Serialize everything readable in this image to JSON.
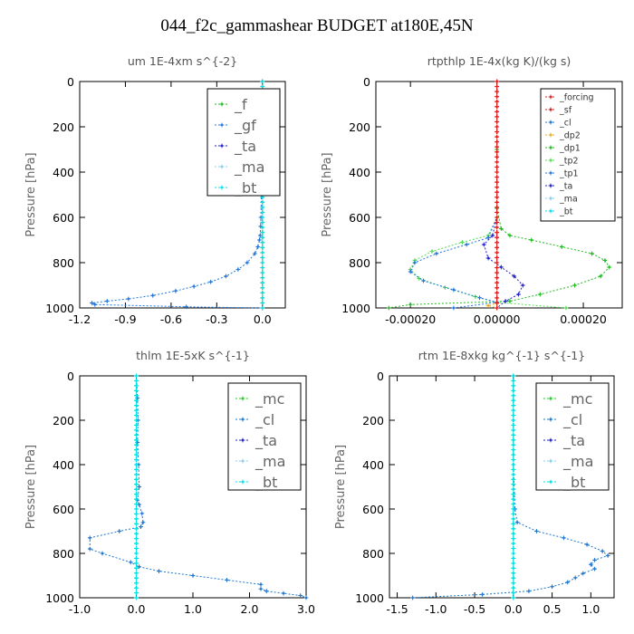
{
  "figure_title": "044_f2c_gammashear  BUDGET at180E,45N",
  "colors": {
    "f": "#22bb22",
    "gf": "#2277dd",
    "ta": "#2222cc",
    "ma": "#88ccee",
    "bt": "#00e0ee",
    "forcing": "#dd2222",
    "sf": "#cc2222",
    "cl": "#1f77d0",
    "dp2": "#e8b020",
    "dp1": "#22bb22",
    "tp2": "#55dd55",
    "tp1": "#2277dd",
    "mc": "#22cc22"
  },
  "chart_data": [
    {
      "type": "line",
      "title": "um   1E-4xm  s^{-2}",
      "ylabel": "Pressure [hPa]",
      "xlim": [
        -1.2,
        0.15
      ],
      "ylim": [
        1000,
        0
      ],
      "xticks": [
        -1.2,
        -0.9,
        -0.6,
        -0.3,
        0.0
      ],
      "xtick_labels": [
        "-1.2",
        "-0.9",
        "-0.6",
        "-0.3",
        "0.0"
      ],
      "yticks": [
        0,
        200,
        400,
        600,
        800,
        1000
      ],
      "ytick_labels": [
        "0",
        "200",
        "400",
        "600",
        "800",
        "1000"
      ],
      "legend": {
        "location": "top-right",
        "labels": [
          "_f",
          "_gf",
          "_ta",
          "_ma",
          "_bt"
        ],
        "style": "large"
      },
      "series": [
        {
          "name": "_gf",
          "color_key": "gf",
          "x": [
            -0.002,
            -0.003,
            -0.004,
            -0.005,
            -0.006,
            -0.007,
            -0.01,
            -0.012,
            -0.015,
            -0.02,
            -0.03,
            -0.05,
            -0.1,
            -0.16,
            -0.24,
            -0.34,
            -0.45,
            -0.57,
            -0.72,
            -0.88,
            -1.02,
            -1.12,
            -1.1,
            -0.5,
            0.0
          ],
          "y": [
            0,
            100,
            200,
            300,
            400,
            500,
            600,
            640,
            680,
            700,
            730,
            760,
            800,
            830,
            860,
            885,
            905,
            925,
            945,
            960,
            970,
            978,
            985,
            995,
            1000
          ]
        },
        {
          "name": "_f",
          "color_key": "f",
          "x": [
            0,
            0
          ],
          "y": [
            0,
            1000
          ]
        },
        {
          "name": "_bt",
          "color_key": "bt",
          "x": [
            0,
            0
          ],
          "y": [
            0,
            1000
          ]
        }
      ]
    },
    {
      "type": "line",
      "title": "rtpthlp   1E-4x(kg K)/(kg s)",
      "ylabel": "Pressure [hPa]",
      "xlim": [
        -0.00028,
        0.00029
      ],
      "ylim": [
        1000,
        0
      ],
      "xticks": [
        -0.0002,
        0.0,
        0.0002
      ],
      "xtick_labels": [
        "-0.00020",
        "0.00000",
        "0.00020"
      ],
      "yticks": [
        0,
        200,
        400,
        600,
        800,
        1000
      ],
      "ytick_labels": [
        "0",
        "200",
        "400",
        "600",
        "800",
        "1000"
      ],
      "legend": {
        "location": "top-right",
        "labels": [
          "_forcing",
          "_sf",
          "_cl",
          "_dp2",
          "_dp1",
          "_tp2",
          "_tp1",
          "_ta",
          "_ma",
          "_bt"
        ],
        "style": "small"
      },
      "series": [
        {
          "name": "_dp1",
          "color_key": "dp1",
          "x": [
            0,
            0,
            0,
            1e-05,
            3e-05,
            8e-05,
            0.00015,
            0.00022,
            0.00025,
            0.00026,
            0.00024,
            0.00018,
            0.0001,
            3e-05,
            -0.0002,
            -0.00025
          ],
          "y": [
            0,
            300,
            560,
            650,
            680,
            700,
            730,
            760,
            790,
            820,
            860,
            900,
            940,
            970,
            985,
            1000
          ]
        },
        {
          "name": "_tp2",
          "color_key": "tp2",
          "x": [
            0,
            0,
            -2e-05,
            -8e-05,
            -0.00015,
            -0.00019,
            -0.0002,
            -0.00018,
            -0.00012,
            -5e-05,
            0,
            0.00016
          ],
          "y": [
            0,
            600,
            680,
            710,
            750,
            790,
            830,
            870,
            910,
            950,
            975,
            1000
          ]
        },
        {
          "name": "_tp1",
          "color_key": "tp1",
          "x": [
            0,
            0,
            -2e-05,
            -7e-05,
            -0.00014,
            -0.00019,
            -0.0002,
            -0.00017,
            -0.0001,
            -4e-05,
            0,
            -0.0001
          ],
          "y": [
            0,
            600,
            690,
            720,
            760,
            800,
            840,
            880,
            920,
            955,
            975,
            1000
          ]
        },
        {
          "name": "_ta",
          "color_key": "ta",
          "x": [
            0,
            0,
            -1e-05,
            -3e-05,
            -2e-05,
            1e-05,
            4e-05,
            6e-05,
            5e-05,
            2e-05,
            0
          ],
          "y": [
            0,
            600,
            680,
            720,
            780,
            820,
            860,
            900,
            940,
            970,
            1000
          ]
        },
        {
          "name": "_dp2",
          "color_key": "dp2",
          "x": [
            0,
            0,
            -2e-05,
            0
          ],
          "y": [
            0,
            980,
            990,
            1000
          ]
        },
        {
          "name": "_sf",
          "color_key": "sf",
          "x": [
            0,
            0
          ],
          "y": [
            0,
            1000
          ]
        },
        {
          "name": "_forcing",
          "color_key": "forcing",
          "x": [
            0,
            0
          ],
          "y": [
            0,
            1000
          ]
        }
      ]
    },
    {
      "type": "line",
      "title": "thlm   1E-5xK  s^{-1}",
      "ylabel": "Pressure [hPa]",
      "xlim": [
        -1.0,
        3.0
      ],
      "ylim": [
        1000,
        0
      ],
      "xticks": [
        -1.0,
        0.0,
        1.0,
        2.0,
        3.0
      ],
      "xtick_labels": [
        "-1.0",
        "0.0",
        "1.0",
        "2.0",
        "3.0"
      ],
      "yticks": [
        0,
        200,
        400,
        600,
        800,
        1000
      ],
      "ytick_labels": [
        "0",
        "200",
        "400",
        "600",
        "800",
        "1000"
      ],
      "legend": {
        "location": "top-right",
        "labels": [
          "_mc",
          "_cl",
          "_ta",
          "_ma",
          "_bt"
        ],
        "style": "large"
      },
      "series": [
        {
          "name": "_cl",
          "color_key": "cl",
          "x": [
            0,
            0.02,
            0.03,
            0.02,
            0.04,
            0.05,
            0.02,
            0.05,
            0.1,
            0.12,
            0.08,
            -0.3,
            -0.82,
            -0.82,
            -0.6,
            -0.1,
            0.05,
            0.4,
            1.0,
            1.6,
            2.2,
            2.2,
            2.3,
            2.6,
            2.9,
            3.0
          ],
          "y": [
            0,
            100,
            200,
            300,
            400,
            500,
            560,
            580,
            620,
            660,
            680,
            700,
            730,
            780,
            800,
            840,
            860,
            880,
            900,
            920,
            940,
            960,
            970,
            980,
            990,
            1000
          ]
        },
        {
          "name": "_mc",
          "color_key": "mc",
          "x": [
            0,
            0
          ],
          "y": [
            0,
            1000
          ]
        },
        {
          "name": "_bt",
          "color_key": "bt",
          "x": [
            0,
            0
          ],
          "y": [
            0,
            1000
          ]
        }
      ]
    },
    {
      "type": "line",
      "title": "rtm   1E-8xkg  kg^{-1}  s^{-1}",
      "ylabel": "Pressure [hPa]",
      "xlim": [
        -1.6,
        1.3
      ],
      "ylim": [
        1000,
        0
      ],
      "xticks": [
        -1.5,
        -1.0,
        -0.5,
        0.0,
        0.5,
        1.0
      ],
      "xtick_labels": [
        "-1.5",
        "-1.0",
        "-0.5",
        "0.0",
        "0.5",
        "1.0"
      ],
      "yticks": [
        0,
        200,
        400,
        600,
        800,
        1000
      ],
      "ytick_labels": [
        "0",
        "200",
        "400",
        "600",
        "800",
        "1000"
      ],
      "legend": {
        "location": "top-right",
        "labels": [
          "_mc",
          "_cl",
          "_ta",
          "_ma",
          "_bt"
        ],
        "style": "large"
      },
      "series": [
        {
          "name": "_cl",
          "color_key": "cl",
          "x": [
            0,
            0,
            0,
            0.02,
            0.05,
            0.3,
            0.65,
            0.95,
            1.15,
            1.22,
            1.05,
            1.0,
            1.05,
            0.9,
            0.8,
            0.7,
            0.5,
            0.2,
            -0.4,
            -1.3
          ],
          "y": [
            0,
            200,
            400,
            600,
            660,
            700,
            730,
            760,
            790,
            810,
            830,
            850,
            870,
            890,
            910,
            930,
            950,
            970,
            985,
            1000
          ]
        },
        {
          "name": "_mc",
          "color_key": "mc",
          "x": [
            0,
            0
          ],
          "y": [
            0,
            1000
          ]
        },
        {
          "name": "_bt",
          "color_key": "bt",
          "x": [
            0,
            0
          ],
          "y": [
            0,
            1000
          ]
        }
      ]
    }
  ]
}
